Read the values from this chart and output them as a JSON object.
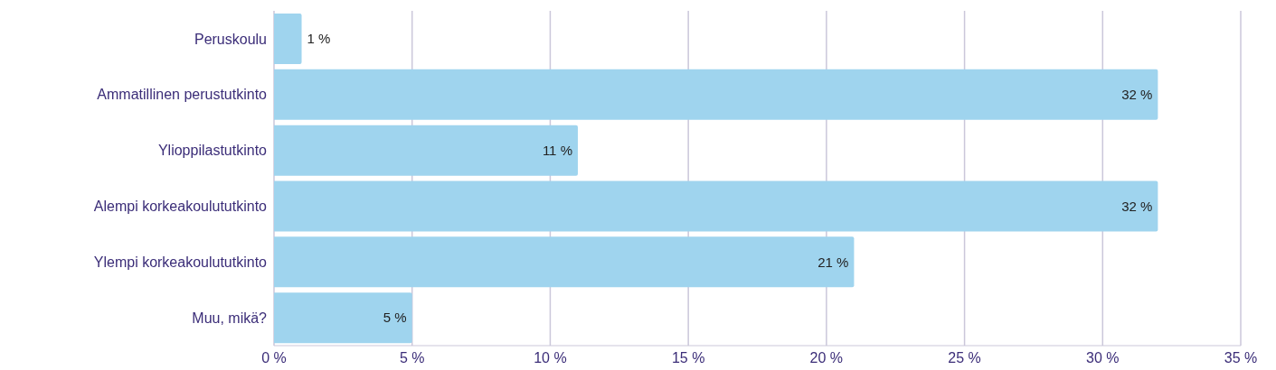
{
  "chart_data": {
    "type": "bar",
    "orientation": "horizontal",
    "categories": [
      "Peruskoulu",
      "Ammatillinen perustutkinto",
      "Ylioppilastutkinto",
      "Alempi korkeakoulututkinto",
      "Ylempi korkeakoulututkinto",
      "Muu, mikä?"
    ],
    "values": [
      1,
      32,
      11,
      32,
      21,
      5
    ],
    "value_labels": [
      "1 %",
      "32 %",
      "11 %",
      "32 %",
      "21 %",
      "5 %"
    ],
    "color": "#9fd4ee",
    "xlim": [
      0,
      35
    ],
    "xticks": [
      {
        "value": 0,
        "label": "0 %"
      },
      {
        "value": 5,
        "label": "5 %"
      },
      {
        "value": 10,
        "label": "10 %"
      },
      {
        "value": 15,
        "label": "15 %"
      },
      {
        "value": 20,
        "label": "20 %"
      },
      {
        "value": 25,
        "label": "25 %"
      },
      {
        "value": 30,
        "label": "30 %"
      },
      {
        "value": 35,
        "label": "35 %"
      }
    ],
    "grid": "x",
    "legend": false
  }
}
